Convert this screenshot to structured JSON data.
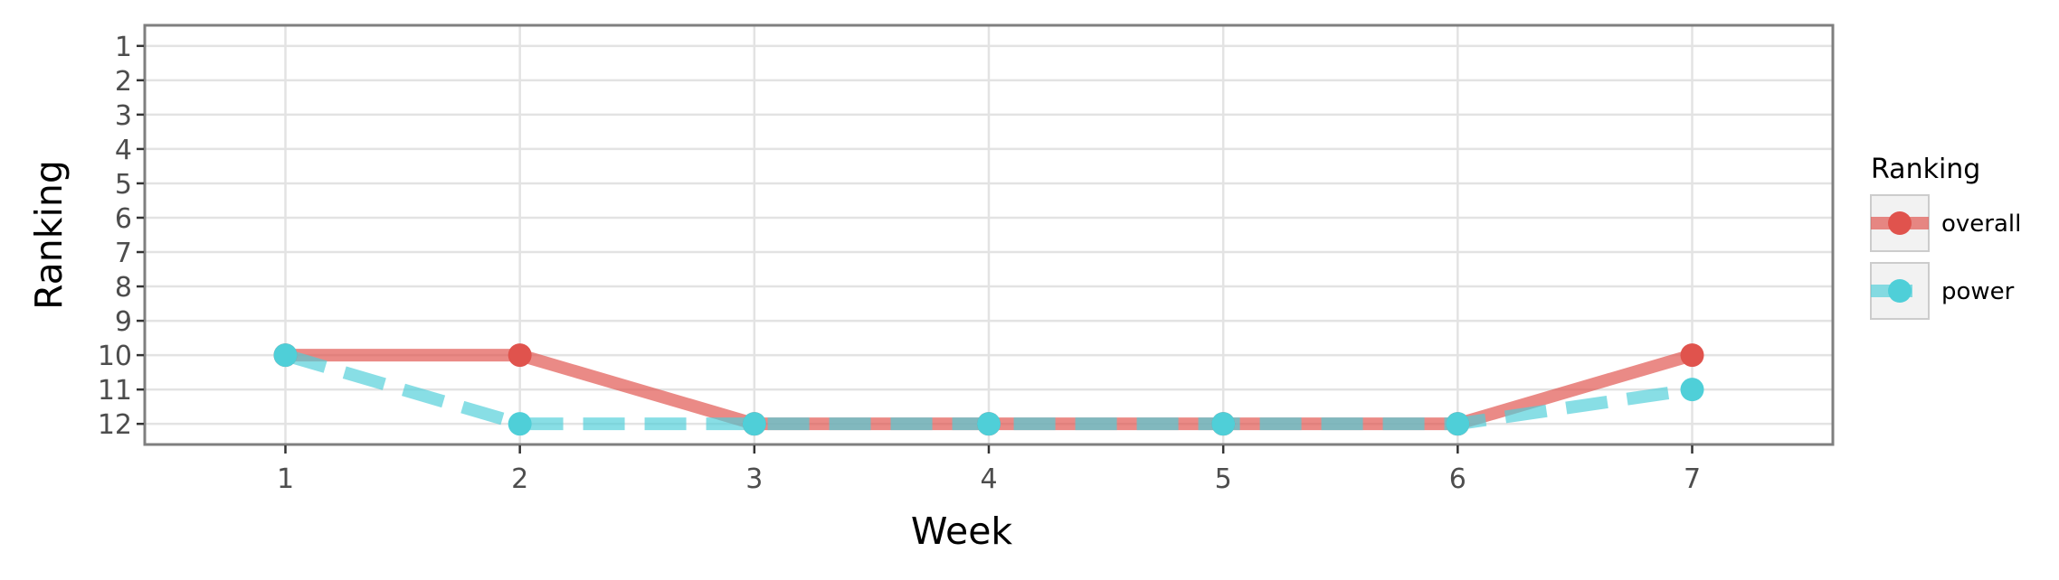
{
  "chart_data": {
    "type": "line",
    "title": "",
    "xlabel": "Week",
    "ylabel": "Ranking",
    "x": [
      1,
      2,
      3,
      4,
      5,
      6,
      7
    ],
    "xlim": [
      0.4,
      7.6
    ],
    "ylim": [
      12.6,
      0.4
    ],
    "y_reversed": true,
    "x_ticks": [
      1,
      2,
      3,
      4,
      5,
      6,
      7
    ],
    "y_ticks": [
      1,
      2,
      3,
      4,
      5,
      6,
      7,
      8,
      9,
      10,
      11,
      12
    ],
    "grid": true,
    "legend": {
      "title": "Ranking",
      "position": "right"
    },
    "series": [
      {
        "name": "overall",
        "values": [
          10,
          10,
          12,
          12,
          12,
          12,
          10
        ],
        "color": "#e0534d",
        "line_style": "solid"
      },
      {
        "name": "power",
        "values": [
          10,
          12,
          12,
          12,
          12,
          12,
          11
        ],
        "color": "#4fcfd8",
        "line_style": "dashed"
      }
    ]
  }
}
